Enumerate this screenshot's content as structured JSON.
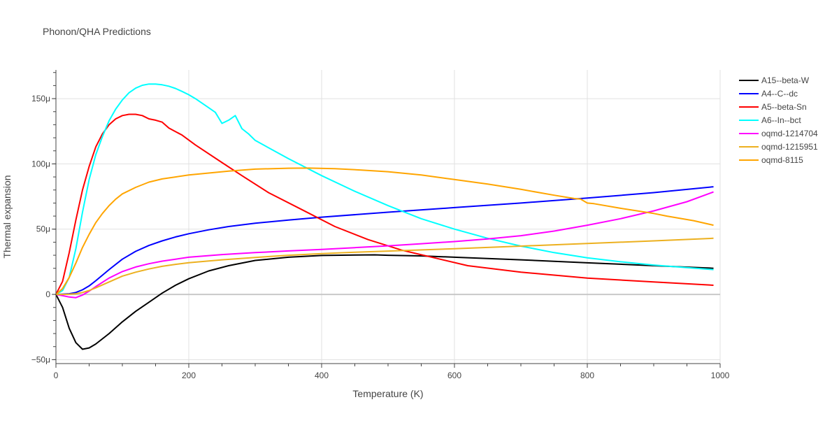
{
  "chart_data": {
    "type": "line",
    "title": "Phonon/QHA Predictions",
    "xlabel": "Temperature (K)",
    "ylabel": "Thermal expansion",
    "xlim": [
      0,
      1000
    ],
    "ylim": [
      -53,
      172
    ],
    "x_ticks": [
      0,
      200,
      400,
      600,
      800,
      1000
    ],
    "x_tick_labels": [
      "0",
      "200",
      "400",
      "600",
      "800",
      "1000"
    ],
    "y_ticks": [
      -50,
      0,
      50,
      100,
      150
    ],
    "y_tick_labels": [
      "−50μ",
      "0",
      "50μ",
      "100μ",
      "150μ"
    ],
    "grid": true,
    "legend_position": "top-right",
    "series": [
      {
        "name": "A15--beta-W",
        "color": "#000000",
        "x": [
          0,
          10,
          20,
          30,
          40,
          50,
          60,
          80,
          100,
          120,
          140,
          160,
          180,
          200,
          230,
          260,
          300,
          350,
          400,
          450,
          480,
          500,
          550,
          600,
          700,
          800,
          900,
          990
        ],
        "y": [
          0,
          -10,
          -26,
          -37,
          -42,
          -41,
          -38,
          -30,
          -21,
          -13,
          -6,
          1,
          7,
          12,
          18,
          22,
          26,
          28.5,
          29.8,
          30.2,
          30.3,
          30,
          29.5,
          28.5,
          26.5,
          24.2,
          22,
          20
        ]
      },
      {
        "name": "A4--C--dc",
        "color": "#0000ff",
        "x": [
          0,
          10,
          20,
          30,
          40,
          50,
          60,
          80,
          100,
          120,
          140,
          160,
          180,
          200,
          230,
          260,
          300,
          350,
          400,
          500,
          600,
          700,
          800,
          900,
          990
        ],
        "y": [
          0,
          0.2,
          0.5,
          1.5,
          3.5,
          6.5,
          10.5,
          19,
          27,
          33,
          37.5,
          41,
          44,
          46.5,
          49.5,
          52,
          54.5,
          57,
          59.2,
          63,
          66.5,
          70,
          73.8,
          78,
          82.5
        ]
      },
      {
        "name": "A5--beta-Sn",
        "color": "#ff0000",
        "x": [
          0,
          10,
          20,
          30,
          40,
          50,
          60,
          70,
          80,
          90,
          100,
          110,
          120,
          130,
          140,
          150,
          160,
          170,
          190,
          210,
          250,
          280,
          320,
          370,
          420,
          470,
          520,
          570,
          620,
          700,
          800,
          900,
          990
        ],
        "y": [
          0,
          10,
          32,
          57,
          80,
          98,
          113,
          123,
          130,
          134.5,
          137,
          138,
          138,
          137,
          134.5,
          133.5,
          132,
          127.5,
          122,
          114.5,
          101,
          91,
          78,
          65,
          52,
          42,
          34,
          28,
          22,
          17,
          12.5,
          9.5,
          7
        ]
      },
      {
        "name": "A6--In--bct",
        "color": "#00ffff",
        "x": [
          0,
          10,
          20,
          30,
          40,
          50,
          60,
          70,
          80,
          90,
          100,
          110,
          120,
          130,
          140,
          150,
          160,
          170,
          180,
          190,
          200,
          210,
          220,
          230,
          240,
          250,
          260,
          270,
          280,
          290,
          300,
          350,
          400,
          450,
          500,
          550,
          600,
          650,
          700,
          750,
          800,
          850,
          900,
          950,
          990
        ],
        "y": [
          0,
          3,
          13,
          35,
          63,
          88,
          107,
          121,
          133,
          142,
          149,
          154.5,
          158,
          160.2,
          161.2,
          161.2,
          160.6,
          159.5,
          157.8,
          155.5,
          153,
          150,
          146.5,
          143,
          139.5,
          131,
          133.5,
          137,
          127,
          123,
          118,
          104,
          91,
          79,
          68,
          58,
          50,
          43,
          37,
          32,
          28,
          25,
          22.5,
          20.5,
          19
        ]
      },
      {
        "name": "oqmd-1214704",
        "color": "#ff00ff",
        "x": [
          0,
          10,
          20,
          30,
          40,
          50,
          60,
          80,
          100,
          120,
          140,
          160,
          180,
          200,
          250,
          300,
          350,
          400,
          450,
          500,
          550,
          600,
          650,
          700,
          750,
          800,
          850,
          900,
          950,
          990
        ],
        "y": [
          0,
          -1,
          -2,
          -2.5,
          -0.5,
          2.5,
          6,
          12.5,
          17.5,
          21,
          23.5,
          25.5,
          27,
          28.5,
          30.5,
          32,
          33.3,
          34.5,
          35.8,
          37.2,
          38.8,
          40.5,
          42.5,
          45,
          48.5,
          53,
          58,
          64,
          71,
          78.5
        ]
      },
      {
        "name": "oqmd-1215951",
        "color": "#ecb01f",
        "x": [
          0,
          10,
          20,
          30,
          40,
          50,
          60,
          80,
          100,
          120,
          140,
          160,
          180,
          200,
          250,
          300,
          350,
          400,
          450,
          500,
          600,
          700,
          800,
          900,
          990
        ],
        "y": [
          0,
          0,
          0.2,
          0.5,
          1.5,
          3,
          5,
          9.5,
          14,
          17,
          19.5,
          21.5,
          23,
          24.3,
          26.5,
          28.3,
          30,
          31.2,
          32.3,
          33.2,
          35,
          37,
          39,
          41,
          43
        ]
      },
      {
        "name": "oqmd-8115",
        "color": "#ffa500",
        "x": [
          0,
          10,
          20,
          30,
          40,
          50,
          60,
          70,
          80,
          90,
          100,
          120,
          140,
          160,
          180,
          200,
          230,
          260,
          300,
          350,
          380,
          420,
          460,
          500,
          550,
          600,
          650,
          700,
          750,
          780,
          790,
          800,
          810,
          850,
          900,
          920,
          960,
          990
        ],
        "y": [
          0,
          4.5,
          13,
          24,
          36,
          46,
          55,
          62,
          68,
          73,
          77,
          82,
          86,
          88.5,
          90,
          91.5,
          93,
          94.5,
          96,
          96.7,
          96.8,
          96.3,
          95.3,
          94,
          91.5,
          88,
          84.5,
          80.5,
          76,
          73.5,
          73,
          70,
          69.5,
          66,
          62,
          60,
          56.5,
          53
        ]
      }
    ]
  }
}
